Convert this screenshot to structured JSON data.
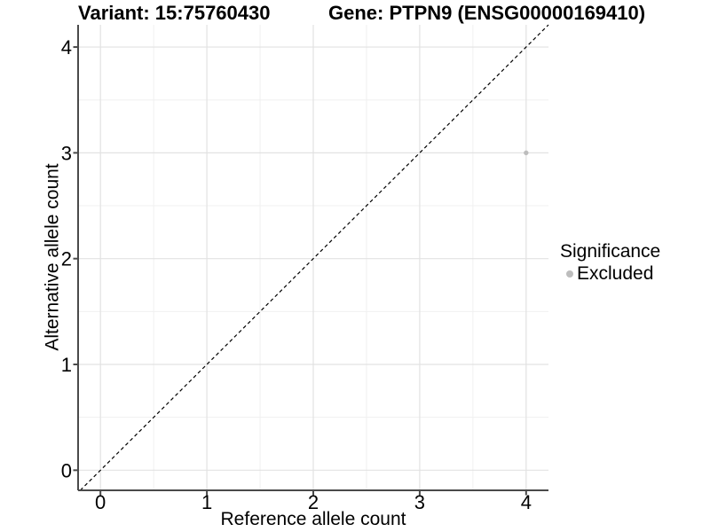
{
  "titles": {
    "variant": "Variant: 15:75760430",
    "gene": "Gene: PTPN9 (ENSG00000169410)"
  },
  "chart_data": {
    "type": "scatter",
    "title_left": "Variant: 15:75760430",
    "title_right": "Gene: PTPN9 (ENSG00000169410)",
    "xlabel": "Reference allele count",
    "ylabel": "Alternative allele count",
    "xlim": [
      -0.21,
      4.21
    ],
    "ylim": [
      -0.19,
      4.21
    ],
    "x_ticks": [
      0,
      1,
      2,
      3,
      4
    ],
    "y_ticks": [
      0,
      1,
      2,
      3,
      4
    ],
    "x_minor_ticks": [
      0.5,
      1.5,
      2.5,
      3.5
    ],
    "y_minor_ticks": [
      0.5,
      1.5,
      2.5,
      3.5
    ],
    "grid": true,
    "reference_line": {
      "type": "identity",
      "style": "dashed",
      "color": "#000000"
    },
    "series": [
      {
        "name": "Excluded",
        "color": "#bdbdbd",
        "points": [
          {
            "x": 4,
            "y": 3
          }
        ]
      }
    ],
    "legend": {
      "title": "Significance",
      "position": "right",
      "entries": [
        {
          "label": "Excluded",
          "color": "#bdbdbd"
        }
      ]
    },
    "colors": {
      "grid_major": "#e2e2e2",
      "grid_minor": "#f0f0f0",
      "axis": "#4a4a4a",
      "point": "#bdbdbd",
      "background": "#ffffff"
    }
  }
}
